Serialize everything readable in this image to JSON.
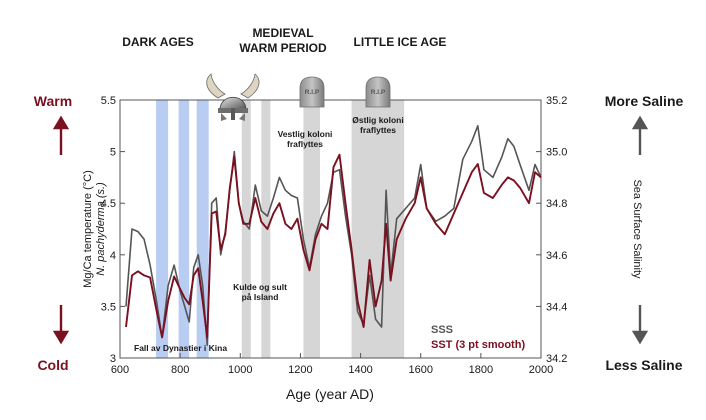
{
  "chart_data": {
    "type": "line",
    "title": "",
    "xlabel": "Age (year AD)",
    "ylabel_left_1": "Mg/Ca temperature (°C)",
    "ylabel_left_2": "N. pachyderma (s.)",
    "ylabel_right": "Sea Surface Salinity",
    "xlim": [
      600,
      2000
    ],
    "ylim_left": [
      3,
      5.5
    ],
    "ylim_right": [
      34.2,
      35.2
    ],
    "x_ticks": [
      600,
      800,
      1000,
      1200,
      1400,
      1600,
      1800,
      2000
    ],
    "y_left_ticks": [
      3,
      3.5,
      4,
      4.5,
      5,
      5.5
    ],
    "y_right_ticks": [
      34.2,
      34.4,
      34.6,
      34.8,
      35,
      35.2
    ],
    "eras": {
      "dark_ages": "DARK AGES",
      "medieval_1": "MEDIEVAL",
      "medieval_2": "WARM PERIOD",
      "little_ice_age": "LITTLE ICE AGE"
    },
    "left_side": {
      "warm": "Warm",
      "cold": "Cold",
      "color": "#7a1020"
    },
    "right_side": {
      "top": "More Saline",
      "bottom": "Less Saline",
      "color": "#555555"
    },
    "legend": {
      "sss": "SSS",
      "sst": "SST (3 pt smooth)"
    },
    "annotations": {
      "china_1": "Fall av Dynastier i Kina",
      "iceland_1": "Kulde og sult",
      "iceland_2": "på Island",
      "west_1": "Vestlig koloni",
      "west_2": "fraflyttes",
      "east_1": "Østlig koloni",
      "east_2": "fraflyttes",
      "rip": "R.I.P"
    },
    "bands": [
      {
        "name": "china-1",
        "from": 720,
        "to": 760,
        "color": "#b9cdf2"
      },
      {
        "name": "china-2",
        "from": 795,
        "to": 830,
        "color": "#b9cdf2"
      },
      {
        "name": "china-3",
        "from": 855,
        "to": 895,
        "color": "#b9cdf2"
      },
      {
        "name": "iceland-1",
        "from": 1005,
        "to": 1035,
        "color": "#d6d6d6"
      },
      {
        "name": "iceland-2",
        "from": 1070,
        "to": 1100,
        "color": "#d6d6d6"
      },
      {
        "name": "western-settlement",
        "from": 1210,
        "to": 1265,
        "color": "#d6d6d6"
      },
      {
        "name": "eastern-settlement",
        "from": 1370,
        "to": 1545,
        "color": "#d6d6d6"
      }
    ],
    "series": [
      {
        "name": "SSS",
        "axis": "right",
        "color": "#555555",
        "points": [
          [
            620,
            34.4
          ],
          [
            640,
            34.7
          ],
          [
            660,
            34.69
          ],
          [
            680,
            34.66
          ],
          [
            700,
            34.56
          ],
          [
            720,
            34.43
          ],
          [
            740,
            34.28
          ],
          [
            760,
            34.48
          ],
          [
            780,
            34.56
          ],
          [
            800,
            34.46
          ],
          [
            815,
            34.4
          ],
          [
            830,
            34.34
          ],
          [
            845,
            34.55
          ],
          [
            860,
            34.6
          ],
          [
            875,
            34.48
          ],
          [
            890,
            34.25
          ],
          [
            905,
            34.8
          ],
          [
            920,
            34.82
          ],
          [
            935,
            34.6
          ],
          [
            950,
            34.69
          ],
          [
            965,
            34.85
          ],
          [
            980,
            35.0
          ],
          [
            995,
            34.8
          ],
          [
            1010,
            34.73
          ],
          [
            1030,
            34.7
          ],
          [
            1050,
            34.87
          ],
          [
            1070,
            34.77
          ],
          [
            1090,
            34.75
          ],
          [
            1110,
            34.82
          ],
          [
            1130,
            34.9
          ],
          [
            1150,
            34.85
          ],
          [
            1170,
            34.83
          ],
          [
            1190,
            34.82
          ],
          [
            1210,
            34.66
          ],
          [
            1230,
            34.55
          ],
          [
            1250,
            34.68
          ],
          [
            1270,
            34.75
          ],
          [
            1290,
            34.8
          ],
          [
            1310,
            34.92
          ],
          [
            1330,
            34.93
          ],
          [
            1350,
            34.75
          ],
          [
            1370,
            34.6
          ],
          [
            1390,
            34.38
          ],
          [
            1410,
            34.33
          ],
          [
            1430,
            34.52
          ],
          [
            1450,
            34.35
          ],
          [
            1470,
            34.32
          ],
          [
            1485,
            34.85
          ],
          [
            1500,
            34.52
          ],
          [
            1520,
            34.74
          ],
          [
            1550,
            34.78
          ],
          [
            1580,
            34.82
          ],
          [
            1600,
            34.95
          ],
          [
            1620,
            34.78
          ],
          [
            1650,
            34.73
          ],
          [
            1680,
            34.75
          ],
          [
            1710,
            34.78
          ],
          [
            1740,
            34.97
          ],
          [
            1770,
            35.04
          ],
          [
            1790,
            35.1
          ],
          [
            1810,
            34.93
          ],
          [
            1840,
            34.9
          ],
          [
            1870,
            34.98
          ],
          [
            1890,
            35.05
          ],
          [
            1910,
            35.02
          ],
          [
            1930,
            34.95
          ],
          [
            1960,
            34.85
          ],
          [
            1980,
            34.95
          ],
          [
            2000,
            34.9
          ]
        ]
      },
      {
        "name": "SST (3 pt smooth)",
        "axis": "left",
        "color": "#7a1020",
        "points": [
          [
            620,
            3.3
          ],
          [
            640,
            3.8
          ],
          [
            660,
            3.84
          ],
          [
            680,
            3.8
          ],
          [
            700,
            3.78
          ],
          [
            720,
            3.48
          ],
          [
            740,
            3.2
          ],
          [
            760,
            3.55
          ],
          [
            780,
            3.79
          ],
          [
            800,
            3.67
          ],
          [
            815,
            3.58
          ],
          [
            830,
            3.52
          ],
          [
            845,
            3.8
          ],
          [
            860,
            3.87
          ],
          [
            875,
            3.55
          ],
          [
            890,
            3.2
          ],
          [
            905,
            4.4
          ],
          [
            920,
            4.42
          ],
          [
            935,
            4.05
          ],
          [
            950,
            4.2
          ],
          [
            965,
            4.65
          ],
          [
            980,
            4.95
          ],
          [
            995,
            4.5
          ],
          [
            1010,
            4.3
          ],
          [
            1030,
            4.3
          ],
          [
            1050,
            4.55
          ],
          [
            1070,
            4.32
          ],
          [
            1090,
            4.25
          ],
          [
            1110,
            4.4
          ],
          [
            1130,
            4.5
          ],
          [
            1150,
            4.3
          ],
          [
            1170,
            4.25
          ],
          [
            1190,
            4.35
          ],
          [
            1210,
            4.05
          ],
          [
            1230,
            3.85
          ],
          [
            1250,
            4.15
          ],
          [
            1270,
            4.3
          ],
          [
            1290,
            4.25
          ],
          [
            1310,
            4.85
          ],
          [
            1330,
            4.97
          ],
          [
            1350,
            4.5
          ],
          [
            1370,
            4.05
          ],
          [
            1390,
            3.55
          ],
          [
            1410,
            3.3
          ],
          [
            1430,
            3.95
          ],
          [
            1450,
            3.5
          ],
          [
            1470,
            3.75
          ],
          [
            1485,
            4.3
          ],
          [
            1500,
            3.75
          ],
          [
            1520,
            4.15
          ],
          [
            1550,
            4.35
          ],
          [
            1580,
            4.5
          ],
          [
            1600,
            4.75
          ],
          [
            1620,
            4.45
          ],
          [
            1650,
            4.3
          ],
          [
            1680,
            4.2
          ],
          [
            1710,
            4.4
          ],
          [
            1740,
            4.6
          ],
          [
            1770,
            4.8
          ],
          [
            1790,
            4.88
          ],
          [
            1810,
            4.6
          ],
          [
            1840,
            4.55
          ],
          [
            1870,
            4.68
          ],
          [
            1890,
            4.75
          ],
          [
            1910,
            4.72
          ],
          [
            1930,
            4.65
          ],
          [
            1960,
            4.5
          ],
          [
            1980,
            4.8
          ],
          [
            2000,
            4.75
          ]
        ]
      }
    ]
  }
}
